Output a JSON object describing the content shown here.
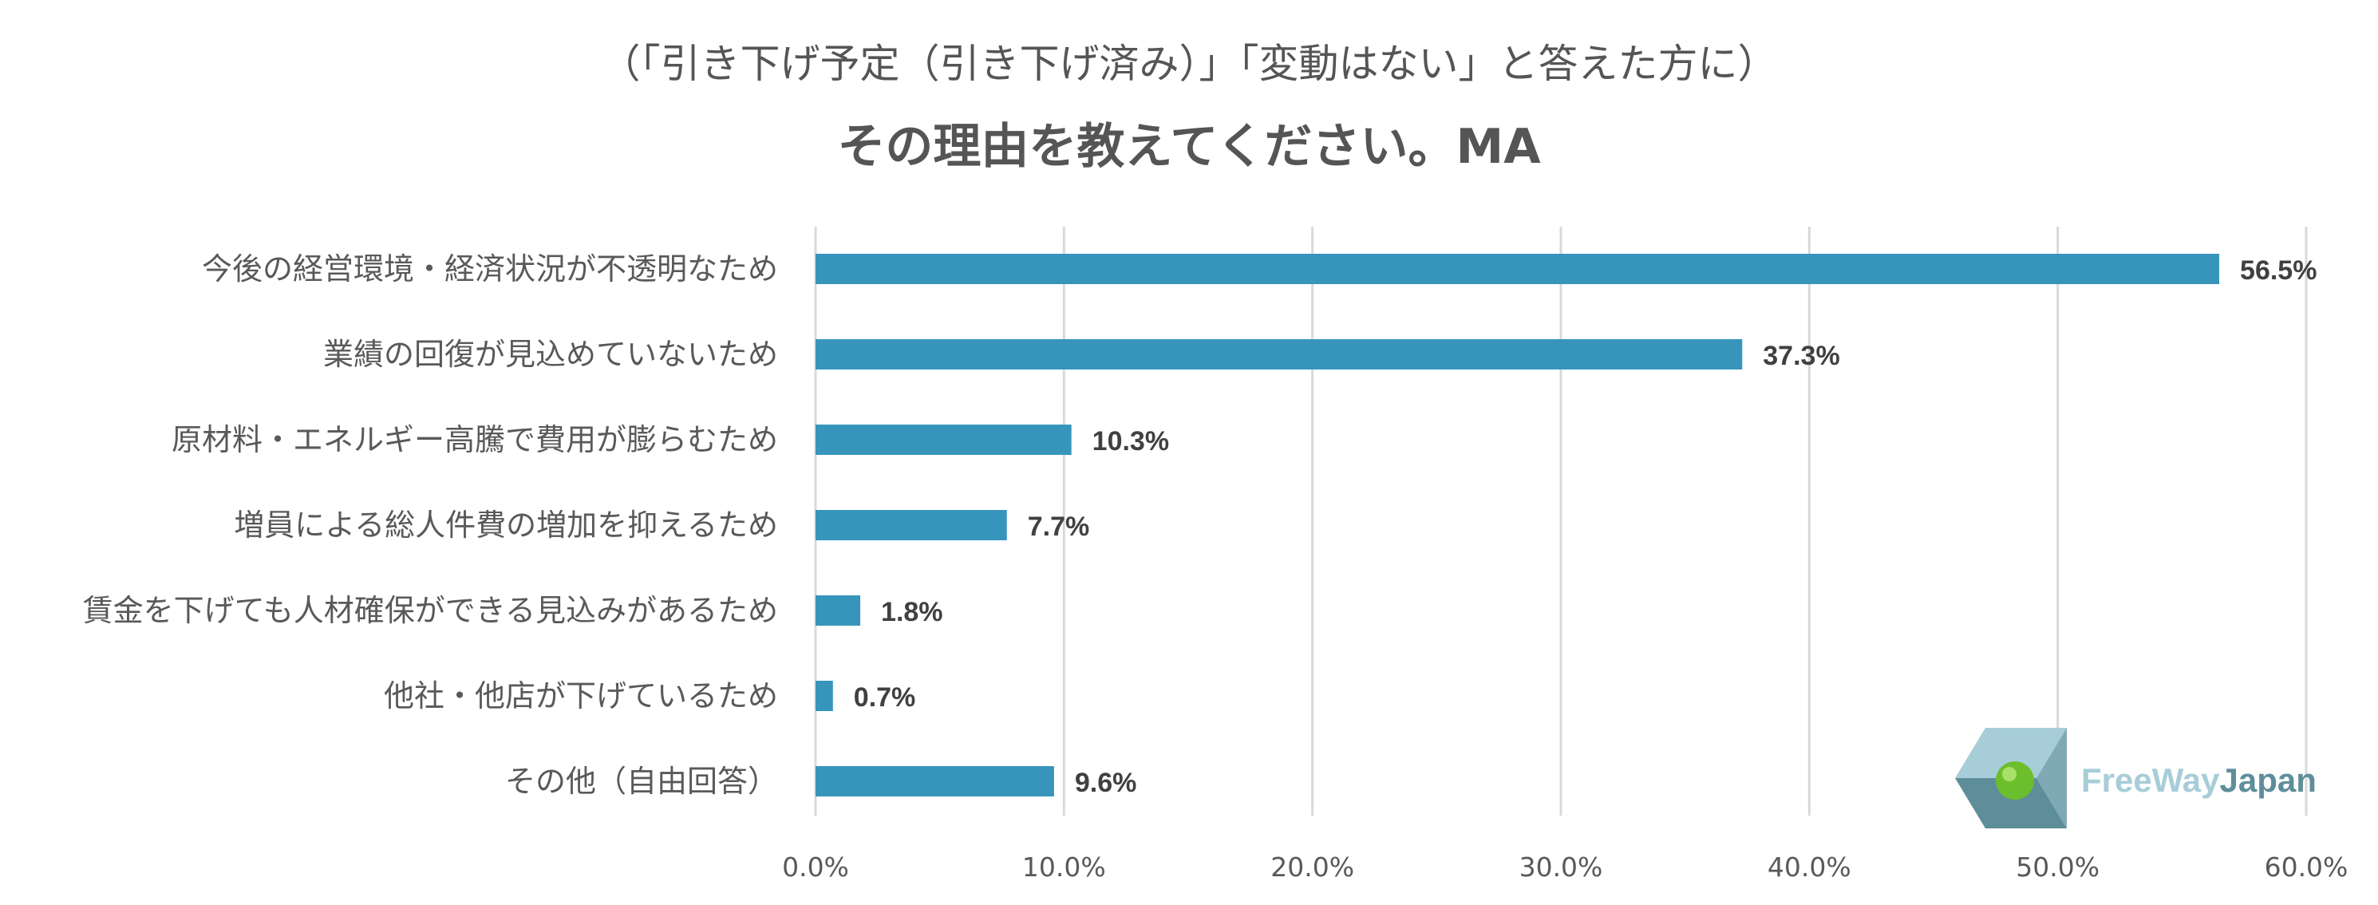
{
  "chart_data": {
    "type": "bar",
    "orientation": "horizontal",
    "subtitle": "（「引き下げ予定（引き下げ済み）」「変動はない」と答えた方に）",
    "title": "その理由を教えてください。MA",
    "categories": [
      "今後の経営環境・経済状況が不透明なため",
      "業績の回復が見込めていないため",
      "原材料・エネルギー高騰で費用が膨らむため",
      "増員による総人件費の増加を抑えるため",
      "賃金を下げても人材確保ができる見込みがあるため",
      "他社・他店が下げているため",
      "その他（自由回答）"
    ],
    "values": [
      56.5,
      37.3,
      10.3,
      7.7,
      1.8,
      0.7,
      9.6
    ],
    "value_labels": [
      "56.5%",
      "37.3%",
      "10.3%",
      "7.7%",
      "1.8%",
      "0.7%",
      "9.6%"
    ],
    "xlim": [
      0,
      60
    ],
    "xticks": [
      0,
      10,
      20,
      30,
      40,
      50,
      60
    ],
    "xtick_labels": [
      "0.0%",
      "10.0%",
      "20.0%",
      "30.0%",
      "40.0%",
      "50.0%",
      "60.0%"
    ],
    "xlabel": "",
    "ylabel": "",
    "grid": "vertical",
    "bar_color": "#3795BC",
    "grid_color": "#D9D9D9"
  },
  "logo": {
    "text_part1": "FreeWay",
    "text_part2": "Japan",
    "color_light": "#A7CDD8",
    "color_dark": "#5E8E9A",
    "color_green": "#6DBE2C"
  }
}
